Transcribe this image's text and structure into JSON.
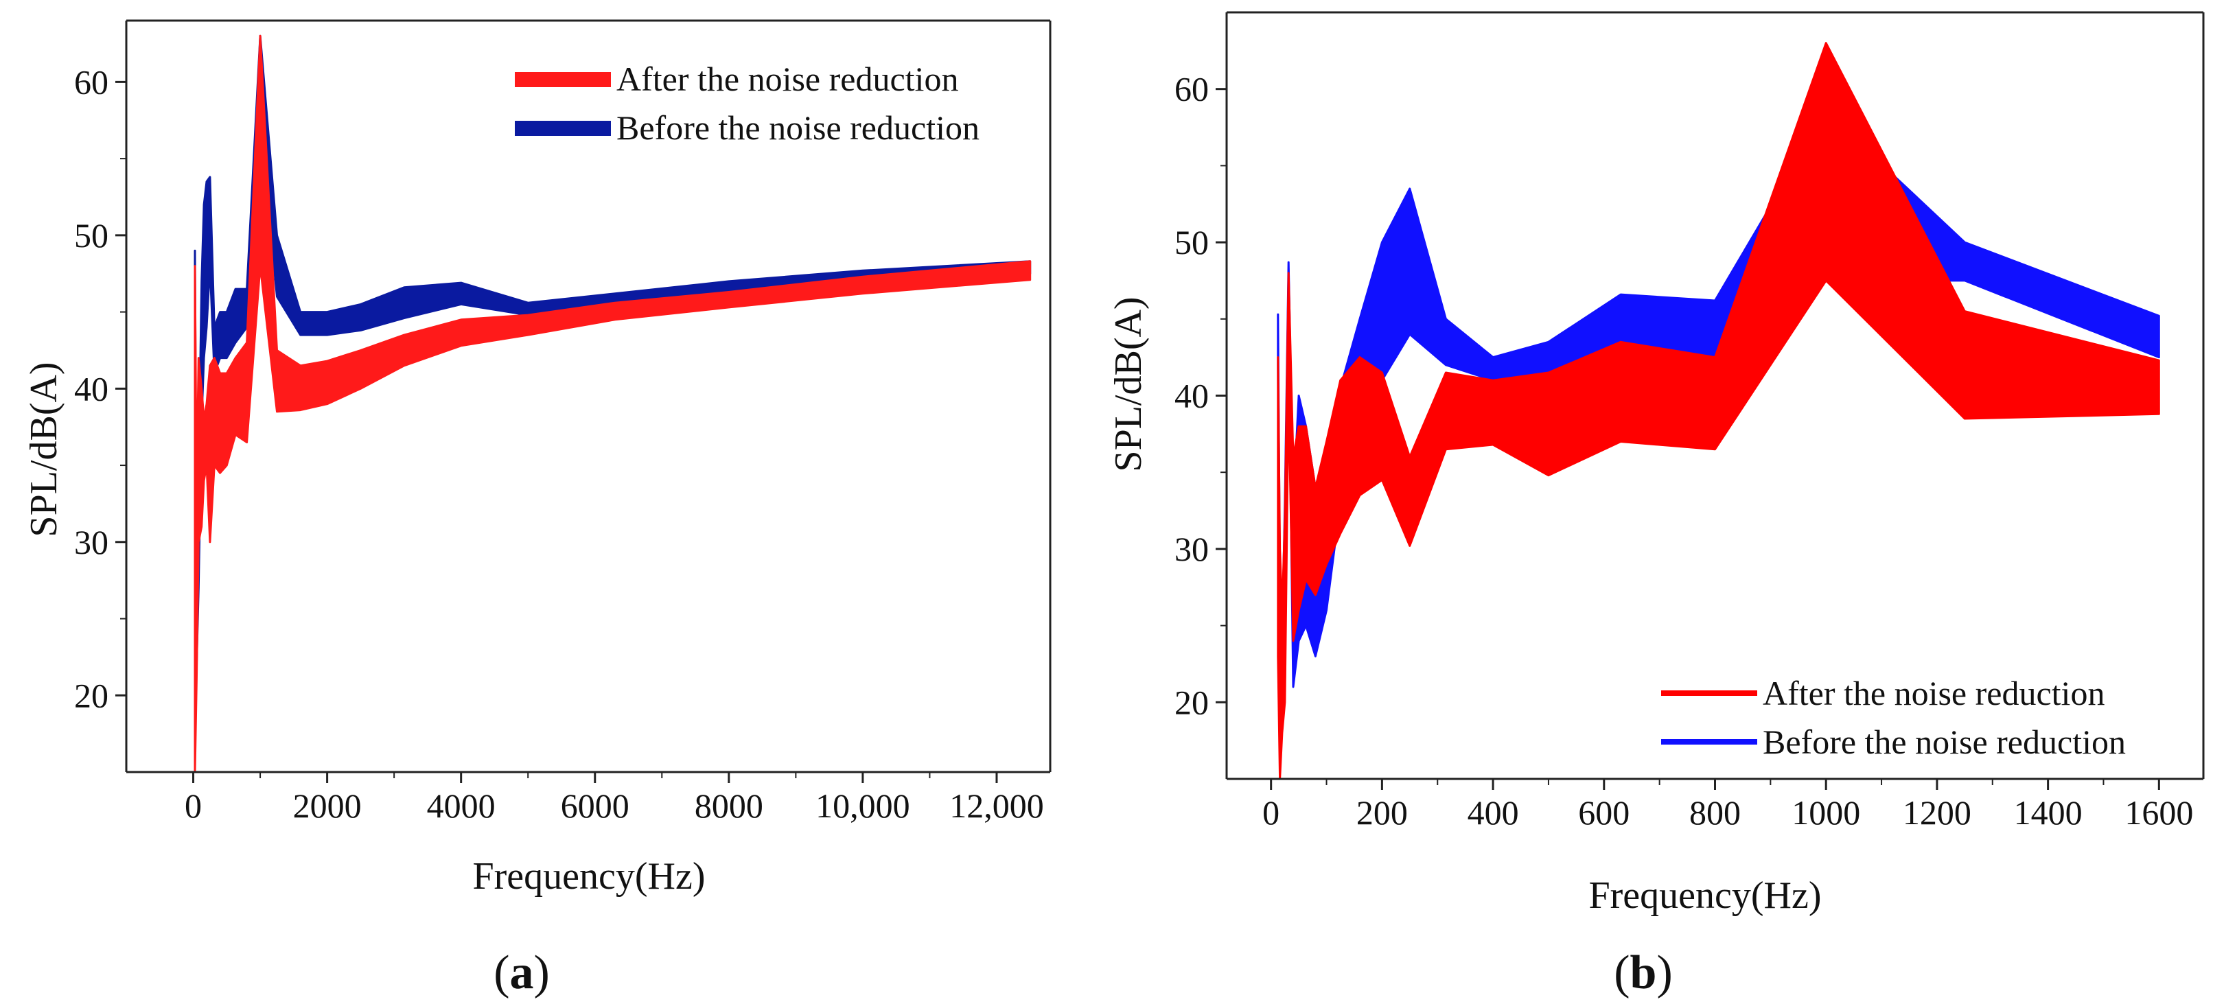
{
  "chart_data": [
    {
      "type": "area",
      "panel": "(a)",
      "panel_label": {
        "open": "(",
        "letter": "a",
        "close": ")"
      },
      "title": "",
      "xlabel": "Frequency(Hz)",
      "ylabel": "SPL/dB(A)",
      "xlim": [
        -1000,
        12800
      ],
      "ylim": [
        15,
        64
      ],
      "xticks": [
        0,
        2000,
        4000,
        6000,
        8000,
        10000,
        12000
      ],
      "xtick_labels": [
        "0",
        "2000",
        "4000",
        "6000",
        "8000",
        "10,000",
        "12,000"
      ],
      "yticks": [
        20,
        30,
        40,
        50,
        60
      ],
      "ytick_labels": [
        "20",
        "30",
        "40",
        "50",
        "60"
      ],
      "legend_position": "top-right",
      "series": [
        {
          "name": "Before the noise reduction",
          "color": "#0a1aa0",
          "x": [
            25,
            50,
            80,
            125,
            160,
            200,
            250,
            315,
            400,
            500,
            630,
            800,
            1000,
            1250,
            1600,
            2000,
            2500,
            3150,
            4000,
            5000,
            6300,
            8000,
            10000,
            12500
          ],
          "lower": [
            46,
            22,
            27,
            38,
            42,
            44,
            48,
            41,
            42,
            42,
            43,
            44,
            57,
            46,
            43.5,
            43.5,
            43.8,
            44.6,
            45.5,
            44.8,
            45.4,
            46.1,
            46.9,
            47.5
          ],
          "upper": [
            49,
            26,
            34,
            47,
            52,
            53.5,
            53.8,
            44,
            45,
            45,
            46.5,
            46.5,
            63,
            50,
            45,
            45,
            45.5,
            46.6,
            46.9,
            45.6,
            46.2,
            47,
            47.7,
            48.3
          ]
        },
        {
          "name": "After the noise reduction",
          "color": "#ff1a1a",
          "x": [
            25,
            50,
            80,
            125,
            160,
            200,
            250,
            315,
            400,
            500,
            630,
            800,
            1000,
            1250,
            1600,
            2000,
            2500,
            3150,
            4000,
            5000,
            6300,
            8000,
            10000,
            12500
          ],
          "lower": [
            15,
            21,
            30,
            31,
            34,
            35,
            30,
            35,
            34.5,
            35,
            37,
            36.5,
            48,
            38.5,
            38.6,
            39,
            40,
            41.5,
            42.8,
            43.5,
            44.5,
            45.3,
            46.2,
            47.1
          ],
          "upper": [
            48,
            33,
            42,
            40,
            38,
            39,
            41.5,
            42,
            41,
            41,
            42,
            43,
            63,
            42.5,
            41.5,
            41.8,
            42.5,
            43.5,
            44.5,
            44.8,
            45.6,
            46.3,
            47.3,
            48.3
          ]
        }
      ]
    },
    {
      "type": "area",
      "panel": "(b)",
      "panel_label": {
        "open": "(",
        "letter": "b",
        "close": ")"
      },
      "title": "",
      "xlabel": "Frequency(Hz)",
      "ylabel": "SPL/dB(A)",
      "xlim": [
        -80,
        1680
      ],
      "ylim": [
        15,
        65
      ],
      "xticks": [
        0,
        200,
        400,
        600,
        800,
        1000,
        1200,
        1400,
        1600
      ],
      "xtick_labels": [
        "0",
        "200",
        "400",
        "600",
        "800",
        "1000",
        "1200",
        "1400",
        "1600"
      ],
      "yticks": [
        20,
        30,
        40,
        50,
        60
      ],
      "ytick_labels": [
        "20",
        "30",
        "40",
        "50",
        "60"
      ],
      "legend_position": "bottom-right",
      "series": [
        {
          "name": "Before the noise reduction",
          "color": "#1010ff",
          "x": [
            12.5,
            16,
            20,
            25,
            31.5,
            40,
            50,
            63,
            80,
            100,
            125,
            160,
            200,
            250,
            315,
            400,
            500,
            630,
            800,
            1000,
            1250,
            1600
          ],
          "lower": [
            42,
            20,
            19,
            21,
            44,
            21,
            24,
            25,
            23,
            26,
            33,
            39,
            41,
            44,
            42,
            41,
            41.5,
            42.5,
            42.5,
            47.5,
            47.5,
            42.5
          ],
          "upper": [
            45.3,
            28,
            24,
            33,
            48.7,
            33,
            40,
            38,
            34,
            36,
            40.5,
            45,
            50,
            53.5,
            45,
            42.5,
            43.5,
            46.6,
            46.2,
            58.5,
            50,
            45.2
          ]
        },
        {
          "name": "After the noise reduction",
          "color": "#ff0000",
          "x": [
            12.5,
            16,
            20,
            25,
            31.5,
            40,
            50,
            63,
            80,
            100,
            125,
            160,
            200,
            250,
            315,
            400,
            500,
            630,
            800,
            1000,
            1250,
            1600
          ],
          "lower": [
            23,
            15,
            18,
            20,
            40,
            24,
            26,
            28,
            27,
            29,
            31,
            33.5,
            34.5,
            30.2,
            36.5,
            36.8,
            34.8,
            37,
            36.5,
            47.5,
            38.5,
            38.8
          ],
          "upper": [
            42.5,
            30,
            26,
            32,
            48,
            36,
            38,
            38,
            34,
            37,
            41,
            42.5,
            41.5,
            36,
            41.5,
            41,
            41.5,
            43.5,
            42.5,
            63,
            45.5,
            42.3
          ]
        }
      ]
    }
  ]
}
